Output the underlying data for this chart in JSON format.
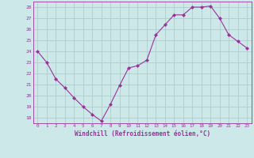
{
  "x": [
    0,
    1,
    2,
    3,
    4,
    5,
    6,
    7,
    8,
    9,
    10,
    11,
    12,
    13,
    14,
    15,
    16,
    17,
    18,
    19,
    20,
    21,
    22,
    23
  ],
  "y": [
    24.0,
    23.0,
    21.5,
    20.7,
    19.8,
    19.0,
    18.3,
    17.7,
    19.2,
    20.9,
    22.5,
    22.7,
    23.2,
    25.5,
    26.4,
    27.3,
    27.3,
    28.0,
    28.0,
    28.1,
    27.0,
    25.5,
    24.9,
    24.3
  ],
  "line_color": "#993399",
  "marker": "D",
  "marker_size": 2,
  "bg_color": "#cce8e8",
  "grid_color": "#aac8c8",
  "xlabel": "Windchill (Refroidissement éolien,°C)",
  "ylim": [
    17.5,
    28.5
  ],
  "yticks": [
    18,
    19,
    20,
    21,
    22,
    23,
    24,
    25,
    26,
    27,
    28
  ],
  "xticks": [
    0,
    1,
    2,
    3,
    4,
    5,
    6,
    7,
    8,
    9,
    10,
    11,
    12,
    13,
    14,
    15,
    16,
    17,
    18,
    19,
    20,
    21,
    22,
    23
  ],
  "xlabel_color": "#993399",
  "axis_color": "#993399",
  "tick_label_color": "#993399"
}
